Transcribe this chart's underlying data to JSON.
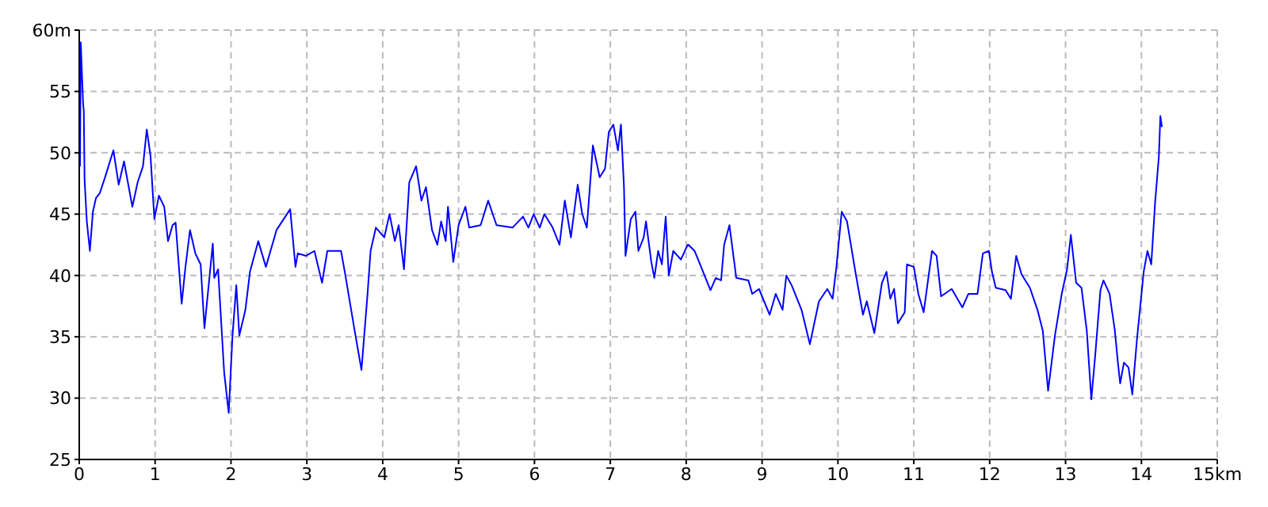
{
  "chart_data": {
    "type": "line",
    "xlim": [
      0,
      15
    ],
    "ylim": [
      25,
      60
    ],
    "xticks": [
      0,
      1,
      2,
      3,
      4,
      5,
      6,
      7,
      8,
      9,
      10,
      11,
      12,
      13,
      14,
      {
        "value": 15,
        "label": "15km"
      }
    ],
    "yticks": [
      25,
      30,
      35,
      40,
      45,
      50,
      55,
      {
        "value": 60,
        "label": "60m"
      }
    ],
    "grid": true,
    "marker": "none",
    "line_style": "solid",
    "series": [
      {
        "color": "#0000ff",
        "x": [
          0.01,
          0.02,
          0.05,
          0.06,
          0.07,
          0.1,
          0.14,
          0.18,
          0.22,
          0.27,
          0.34,
          0.45,
          0.52,
          0.59,
          0.7,
          0.77,
          0.84,
          0.89,
          0.94,
          0.99,
          1.05,
          1.12,
          1.17,
          1.23,
          1.27,
          1.35,
          1.4,
          1.46,
          1.53,
          1.6,
          1.65,
          1.76,
          1.78,
          1.83,
          1.91,
          1.97,
          2.02,
          2.07,
          2.11,
          2.19,
          2.25,
          2.36,
          2.46,
          2.6,
          2.78,
          2.85,
          2.88,
          2.99,
          3.1,
          3.2,
          3.27,
          3.45,
          3.5,
          3.63,
          3.72,
          3.8,
          3.84,
          3.91,
          4.02,
          4.09,
          4.16,
          4.21,
          4.28,
          4.35,
          4.44,
          4.51,
          4.57,
          4.65,
          4.72,
          4.77,
          4.83,
          4.86,
          4.93,
          5.0,
          5.09,
          5.14,
          5.29,
          5.39,
          5.5,
          5.71,
          5.85,
          5.92,
          5.99,
          6.07,
          6.13,
          6.24,
          6.33,
          6.4,
          6.48,
          6.57,
          6.63,
          6.69,
          6.74,
          6.77,
          6.86,
          6.93,
          6.98,
          7.04,
          7.1,
          7.14,
          7.18,
          7.2,
          7.27,
          7.33,
          7.37,
          7.44,
          7.47,
          7.54,
          7.58,
          7.63,
          7.68,
          7.73,
          7.77,
          7.83,
          7.93,
          8.02,
          8.03,
          8.11,
          8.17,
          8.32,
          8.39,
          8.46,
          8.5,
          8.57,
          8.66,
          8.82,
          8.87,
          8.96,
          9.1,
          9.18,
          9.27,
          9.32,
          9.39,
          9.52,
          9.63,
          9.75,
          9.86,
          9.93,
          9.98,
          10.05,
          10.12,
          10.23,
          10.33,
          10.38,
          10.48,
          10.58,
          10.64,
          10.69,
          10.74,
          10.79,
          10.88,
          10.91,
          11.0,
          11.06,
          11.13,
          11.24,
          11.3,
          11.36,
          11.5,
          11.64,
          11.72,
          11.84,
          11.91,
          11.99,
          12.03,
          12.08,
          12.21,
          12.28,
          12.35,
          12.42,
          12.53,
          12.63,
          12.7,
          12.77,
          12.86,
          12.95,
          13.02,
          13.07,
          13.14,
          13.21,
          13.28,
          13.34,
          13.39,
          13.46,
          13.5,
          13.58,
          13.65,
          13.69,
          13.72,
          13.77,
          13.83,
          13.88,
          13.94,
          14.03,
          14.08,
          14.13,
          14.18,
          14.23,
          14.25,
          14.27
        ],
        "values": [
          48.9,
          59.0,
          54.1,
          53.4,
          47.8,
          44.4,
          42.0,
          45.2,
          46.3,
          46.7,
          48.0,
          50.2,
          47.4,
          49.3,
          45.6,
          47.6,
          48.9,
          51.9,
          49.7,
          44.6,
          46.5,
          45.6,
          42.8,
          44.1,
          44.3,
          37.7,
          40.7,
          43.7,
          41.8,
          40.9,
          35.7,
          42.6,
          39.8,
          40.5,
          32.1,
          28.8,
          35.1,
          39.2,
          35.1,
          37.2,
          40.3,
          42.8,
          40.7,
          43.7,
          45.4,
          40.7,
          41.8,
          41.6,
          42.0,
          39.4,
          42.0,
          42.0,
          40.3,
          35.5,
          32.3,
          38.5,
          42.0,
          43.9,
          43.1,
          45.0,
          42.8,
          44.1,
          40.5,
          47.6,
          48.9,
          46.1,
          47.2,
          43.7,
          42.5,
          44.4,
          42.8,
          45.6,
          41.1,
          44.1,
          45.6,
          43.9,
          44.1,
          46.1,
          44.1,
          43.9,
          44.8,
          43.9,
          45.0,
          43.9,
          45.0,
          43.9,
          42.5,
          46.1,
          43.1,
          47.4,
          45.0,
          43.9,
          48.0,
          50.6,
          48.0,
          48.7,
          51.7,
          52.3,
          50.2,
          52.3,
          47.2,
          41.6,
          44.6,
          45.2,
          42.0,
          43.1,
          44.4,
          41.1,
          39.8,
          42.0,
          40.9,
          44.8,
          40.0,
          42.0,
          41.3,
          42.5,
          42.5,
          42.0,
          41.1,
          38.8,
          39.8,
          39.6,
          42.5,
          44.1,
          39.8,
          39.6,
          38.5,
          38.9,
          36.8,
          38.5,
          37.2,
          40.0,
          39.2,
          37.2,
          34.4,
          37.9,
          38.9,
          38.1,
          40.7,
          45.2,
          44.4,
          40.3,
          36.8,
          37.9,
          35.3,
          39.4,
          40.3,
          38.1,
          38.9,
          36.1,
          37.0,
          40.9,
          40.7,
          38.5,
          37.0,
          42.0,
          41.6,
          38.3,
          38.9,
          37.4,
          38.5,
          38.5,
          41.8,
          42.0,
          40.3,
          39.0,
          38.8,
          38.1,
          41.6,
          40.1,
          39.0,
          37.2,
          35.5,
          30.6,
          35.1,
          38.5,
          40.5,
          43.3,
          39.4,
          39.0,
          35.5,
          29.9,
          33.4,
          38.8,
          39.6,
          38.5,
          35.5,
          32.9,
          31.2,
          32.9,
          32.5,
          30.3,
          34.7,
          40.3,
          42.0,
          40.9,
          45.9,
          49.7,
          53.0,
          52.1
        ]
      }
    ]
  }
}
